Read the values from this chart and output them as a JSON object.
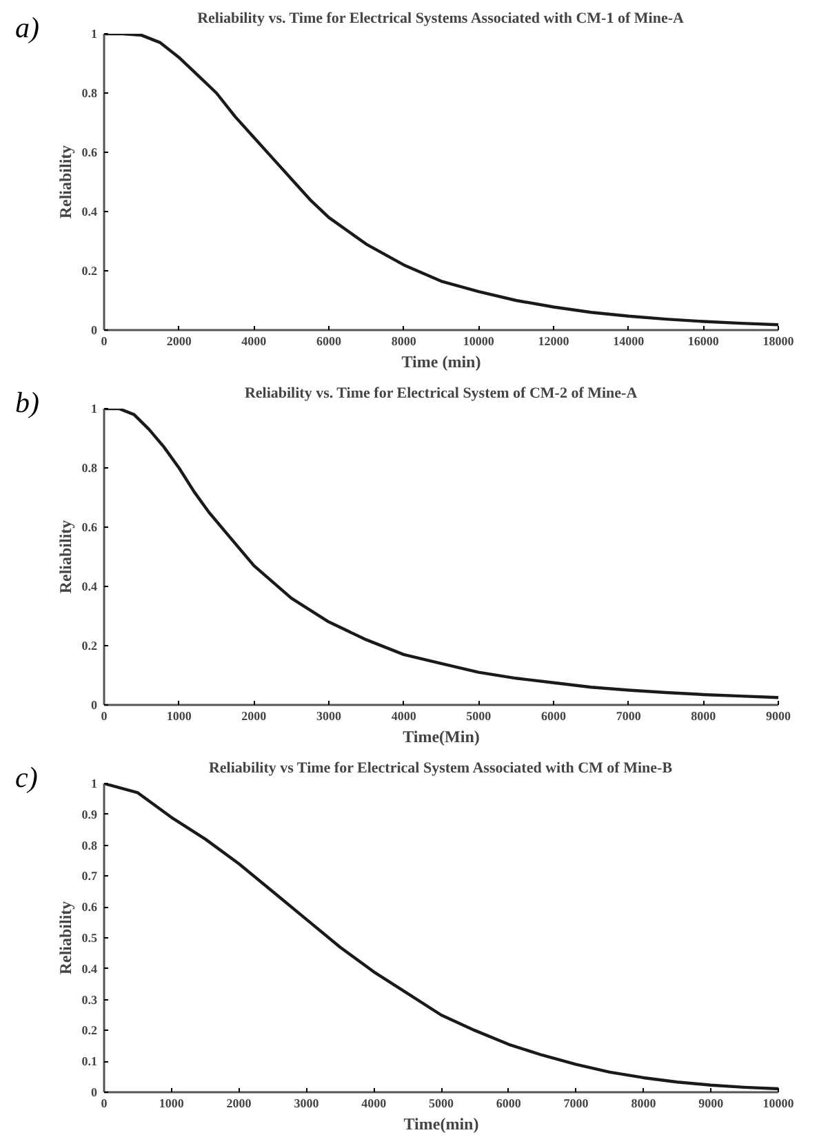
{
  "chart_data": [
    {
      "type": "line",
      "title": "Reliability vs. Time for Electrical Systems Associated with CM-1 of Mine-A",
      "xlabel": "Time (min)",
      "ylabel": "Reliability",
      "annotations": [
        "a)"
      ],
      "x": [
        0,
        500,
        1000,
        1500,
        2000,
        2500,
        3000,
        3500,
        4000,
        4500,
        5000,
        5500,
        6000,
        7000,
        8000,
        9000,
        10000,
        11000,
        12000,
        13000,
        14000,
        15000,
        16000,
        17000,
        18000
      ],
      "series": [
        {
          "color": "#1a1a1a",
          "values": [
            1,
            1,
            0.995,
            0.97,
            0.92,
            0.86,
            0.8,
            0.72,
            0.65,
            0.58,
            0.51,
            0.44,
            0.38,
            0.29,
            0.22,
            0.165,
            0.13,
            0.1,
            0.078,
            0.06,
            0.047,
            0.037,
            0.029,
            0.023,
            0.018
          ]
        }
      ],
      "xlim": [
        0,
        18000
      ],
      "ylim": [
        0,
        1
      ],
      "xticks": [
        0,
        2000,
        4000,
        6000,
        8000,
        10000,
        12000,
        14000,
        16000,
        18000
      ],
      "yticks": [
        0,
        0.2,
        0.4,
        0.6,
        0.8,
        1
      ],
      "grid": false,
      "line_style": "solid"
    },
    {
      "type": "line",
      "title": "Reliability vs. Time for Electrical System of CM-2 of Mine-A",
      "xlabel": "Time(Min)",
      "ylabel": "Reliability",
      "annotations": [
        "b)"
      ],
      "x": [
        0,
        200,
        400,
        600,
        800,
        1000,
        1200,
        1400,
        1600,
        2000,
        2500,
        3000,
        3500,
        4000,
        4500,
        5000,
        5500,
        6000,
        6500,
        7000,
        7500,
        8000,
        8500,
        9000
      ],
      "series": [
        {
          "color": "#1a1a1a",
          "values": [
            1,
            1,
            0.98,
            0.93,
            0.87,
            0.8,
            0.72,
            0.65,
            0.59,
            0.47,
            0.36,
            0.28,
            0.22,
            0.17,
            0.14,
            0.11,
            0.09,
            0.075,
            0.06,
            0.05,
            0.042,
            0.035,
            0.03,
            0.025
          ]
        }
      ],
      "xlim": [
        0,
        9000
      ],
      "ylim": [
        0,
        1
      ],
      "xticks": [
        0,
        1000,
        2000,
        3000,
        4000,
        5000,
        6000,
        7000,
        8000,
        9000
      ],
      "yticks": [
        0,
        0.2,
        0.4,
        0.6,
        0.8,
        1
      ],
      "grid": false,
      "line_style": "solid"
    },
    {
      "type": "line",
      "title": "Reliability vs Time for Electrical System Associated with CM of Mine-B",
      "xlabel": "Time(min)",
      "ylabel": "Reliability",
      "annotations": [
        "c)"
      ],
      "x": [
        0,
        500,
        1000,
        1500,
        2000,
        2500,
        3000,
        3500,
        4000,
        4500,
        5000,
        5500,
        6000,
        6500,
        7000,
        7500,
        8000,
        8500,
        9000,
        9500,
        10000
      ],
      "series": [
        {
          "color": "#1a1a1a",
          "values": [
            1,
            0.97,
            0.89,
            0.82,
            0.74,
            0.65,
            0.56,
            0.47,
            0.39,
            0.32,
            0.25,
            0.2,
            0.155,
            0.12,
            0.09,
            0.065,
            0.047,
            0.033,
            0.023,
            0.016,
            0.011
          ]
        }
      ],
      "xlim": [
        0,
        10000
      ],
      "ylim": [
        0,
        1
      ],
      "xticks": [
        0,
        1000,
        2000,
        3000,
        4000,
        5000,
        6000,
        7000,
        8000,
        9000,
        10000
      ],
      "yticks": [
        0,
        0.1,
        0.2,
        0.3,
        0.4,
        0.5,
        0.6,
        0.7,
        0.8,
        0.9,
        1
      ],
      "grid": false,
      "line_style": "solid"
    }
  ]
}
